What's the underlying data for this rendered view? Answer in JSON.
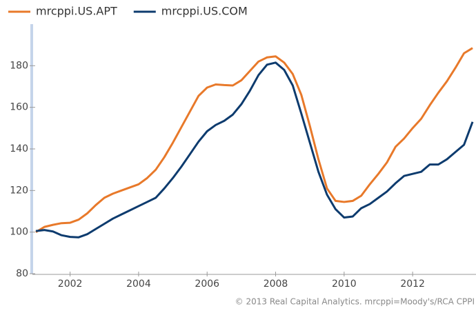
{
  "chart_data": {
    "type": "line",
    "x": [
      2001.0,
      2001.25,
      2001.5,
      2001.75,
      2002.0,
      2002.25,
      2002.5,
      2002.75,
      2003.0,
      2003.25,
      2003.5,
      2003.75,
      2004.0,
      2004.25,
      2004.5,
      2004.75,
      2005.0,
      2005.25,
      2005.5,
      2005.75,
      2006.0,
      2006.25,
      2006.5,
      2006.75,
      2007.0,
      2007.25,
      2007.5,
      2007.75,
      2008.0,
      2008.25,
      2008.5,
      2008.75,
      2009.0,
      2009.25,
      2009.5,
      2009.75,
      2010.0,
      2010.25,
      2010.5,
      2010.75,
      2011.0,
      2011.25,
      2011.5,
      2011.75,
      2012.0,
      2012.25,
      2012.5,
      2012.75,
      2013.0,
      2013.25,
      2013.5,
      2013.75
    ],
    "series": [
      {
        "name": "mrcppi.US.APT",
        "color": "#e8792a",
        "values": [
          100,
          102.5,
          103.5,
          104.3,
          104.5,
          106,
          109,
          113,
          116.5,
          118.5,
          120,
          121.5,
          123,
          126,
          130,
          136,
          143,
          150.5,
          158,
          165.5,
          169.5,
          171,
          170.7,
          170.5,
          173,
          177.5,
          182,
          184,
          184.5,
          181.5,
          176,
          166,
          151,
          135,
          121,
          115,
          114.5,
          115,
          117.5,
          123,
          128,
          133.5,
          141,
          145,
          150,
          154.5,
          161,
          167,
          172.5,
          179,
          186,
          188.5
        ]
      },
      {
        "name": "mrcppi.US.COM",
        "color": "#0d3b6e",
        "values": [
          100.5,
          101,
          100.3,
          98.5,
          97.7,
          97.5,
          99,
          101.5,
          104,
          106.5,
          108.5,
          110.5,
          112.5,
          114.5,
          116.5,
          121,
          126,
          131.5,
          137.5,
          143.5,
          148.5,
          151.5,
          153.5,
          156.5,
          161.5,
          168,
          175.5,
          180.5,
          181.5,
          178,
          170.5,
          157,
          143,
          129,
          118,
          111,
          107,
          107.5,
          111.5,
          113.5,
          116.5,
          119.5,
          123.5,
          127,
          128,
          129,
          132.5,
          132.5,
          135,
          138.5,
          142,
          153
        ]
      }
    ],
    "xlim": [
      2000.9,
      2013.85
    ],
    "ylim": [
      80,
      200
    ],
    "xticks": [
      2002,
      2004,
      2006,
      2008,
      2010,
      2012
    ],
    "yticks": [
      80,
      100,
      120,
      140,
      160,
      180
    ],
    "footer": "© 2013 Real Capital Analytics. mrcppi=Moody's/RCA CPPI"
  }
}
